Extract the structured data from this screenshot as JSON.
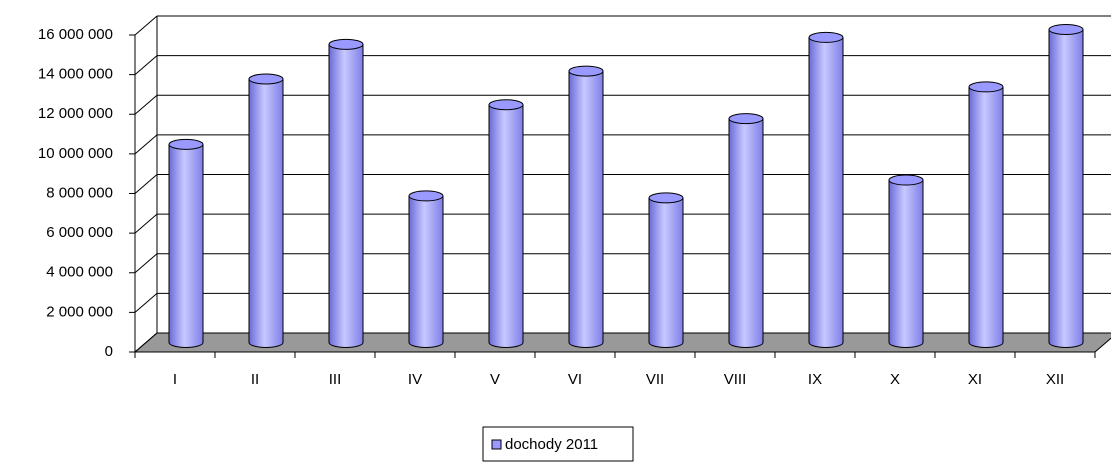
{
  "chart_data": {
    "type": "bar3d",
    "categories": [
      "I",
      "II",
      "III",
      "IV",
      "V",
      "VI",
      "VII",
      "VIII",
      "IX",
      "X",
      "XI",
      "XII"
    ],
    "series": [
      {
        "name": "dochody 2011",
        "color": "#9999ff",
        "values": [
          10000000,
          13300000,
          15050000,
          7400000,
          12000000,
          13700000,
          7300000,
          11300000,
          15400000,
          8200000,
          12900000,
          15800000
        ]
      }
    ],
    "ylim": [
      0,
      16000000
    ],
    "yticks": [
      {
        "value": 0,
        "label": "0"
      },
      {
        "value": 2000000,
        "label": "2 000 000"
      },
      {
        "value": 4000000,
        "label": "4 000 000"
      },
      {
        "value": 6000000,
        "label": "6 000 000"
      },
      {
        "value": 8000000,
        "label": "8 000 000"
      },
      {
        "value": 10000000,
        "label": "10 000 000"
      },
      {
        "value": 12000000,
        "label": "12 000 000"
      },
      {
        "value": 14000000,
        "label": "14 000 000"
      },
      {
        "value": 16000000,
        "label": "16 000 000"
      }
    ],
    "grid": true,
    "legend": "bottom"
  }
}
